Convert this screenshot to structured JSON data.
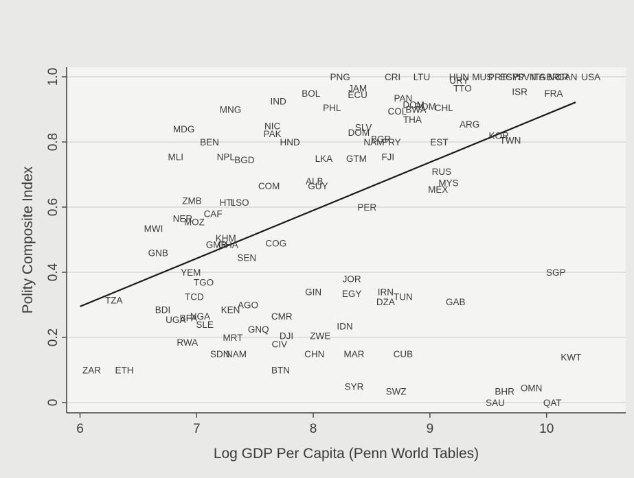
{
  "chart_data": {
    "type": "scatter",
    "title": "",
    "xlabel": "Log GDP Per Capita (Penn World Tables)",
    "ylabel": "Polity Composite Index",
    "xlim": [
      5.9,
      10.7
    ],
    "ylim": [
      -0.03,
      1.03
    ],
    "xticks": [
      6,
      7,
      8,
      9,
      10
    ],
    "yticks": [
      0,
      0.2,
      0.4,
      0.6,
      0.8,
      1.0
    ],
    "ytick_labels": [
      "0",
      "0.2",
      "0.4",
      "0.6",
      "0.8",
      "1.0"
    ],
    "grid": "horizontal",
    "fit_line": {
      "x": [
        6.0,
        10.25
      ],
      "y": [
        0.295,
        0.922
      ]
    },
    "points": [
      {
        "label": "PNG",
        "x": 8.23,
        "y": 1.0
      },
      {
        "label": "CRI",
        "x": 8.68,
        "y": 1.0
      },
      {
        "label": "LTU",
        "x": 8.93,
        "y": 1.0
      },
      {
        "label": "HUN",
        "x": 9.25,
        "y": 1.0
      },
      {
        "label": "MUS",
        "x": 9.45,
        "y": 1.0
      },
      {
        "label": "PRT",
        "x": 9.58,
        "y": 1.0
      },
      {
        "label": "ESP",
        "x": 9.68,
        "y": 1.0
      },
      {
        "label": "CYP",
        "x": 9.73,
        "y": 1.0
      },
      {
        "label": "SVN",
        "x": 9.83,
        "y": 1.0
      },
      {
        "label": "ITA",
        "x": 9.93,
        "y": 1.0
      },
      {
        "label": "GBR",
        "x": 10.02,
        "y": 1.0
      },
      {
        "label": "NOR",
        "x": 10.1,
        "y": 1.0
      },
      {
        "label": "CAN",
        "x": 10.18,
        "y": 1.0
      },
      {
        "label": "USA",
        "x": 10.38,
        "y": 1.0
      },
      {
        "label": "URY",
        "x": 9.25,
        "y": 0.99
      },
      {
        "label": "TTO",
        "x": 9.28,
        "y": 0.965
      },
      {
        "label": "ISR",
        "x": 9.77,
        "y": 0.955
      },
      {
        "label": "FRA",
        "x": 10.06,
        "y": 0.95
      },
      {
        "label": "JAM",
        "x": 8.38,
        "y": 0.965
      },
      {
        "label": "ECU",
        "x": 8.38,
        "y": 0.945
      },
      {
        "label": "BOL",
        "x": 7.98,
        "y": 0.95
      },
      {
        "label": "IND",
        "x": 7.7,
        "y": 0.925
      },
      {
        "label": "MNG",
        "x": 7.29,
        "y": 0.9
      },
      {
        "label": "PHL",
        "x": 8.16,
        "y": 0.905
      },
      {
        "label": "PAN",
        "x": 8.77,
        "y": 0.935
      },
      {
        "label": "DOM",
        "x": 8.86,
        "y": 0.915
      },
      {
        "label": "ROM",
        "x": 8.96,
        "y": 0.91
      },
      {
        "label": "COL",
        "x": 8.72,
        "y": 0.895
      },
      {
        "label": "BWA",
        "x": 8.88,
        "y": 0.9
      },
      {
        "label": "CHL",
        "x": 9.12,
        "y": 0.905
      },
      {
        "label": "THA",
        "x": 8.85,
        "y": 0.87
      },
      {
        "label": "ARG",
        "x": 9.34,
        "y": 0.855
      },
      {
        "label": "MDG",
        "x": 6.89,
        "y": 0.84
      },
      {
        "label": "NIC",
        "x": 7.65,
        "y": 0.85
      },
      {
        "label": "PAK",
        "x": 7.65,
        "y": 0.825
      },
      {
        "label": "HND",
        "x": 7.8,
        "y": 0.8
      },
      {
        "label": "BEN",
        "x": 7.11,
        "y": 0.8
      },
      {
        "label": "SLV",
        "x": 8.43,
        "y": 0.845
      },
      {
        "label": "DOM",
        "x": 8.39,
        "y": 0.83
      },
      {
        "label": "BGR",
        "x": 8.58,
        "y": 0.81
      },
      {
        "label": "NAM",
        "x": 8.52,
        "y": 0.8
      },
      {
        "label": "PRY",
        "x": 8.67,
        "y": 0.8
      },
      {
        "label": "EST",
        "x": 9.08,
        "y": 0.8
      },
      {
        "label": "KOR",
        "x": 9.59,
        "y": 0.82
      },
      {
        "label": "TWN",
        "x": 9.69,
        "y": 0.805
      },
      {
        "label": "MLI",
        "x": 6.82,
        "y": 0.755
      },
      {
        "label": "NPL",
        "x": 7.25,
        "y": 0.755
      },
      {
        "label": "BGD",
        "x": 7.41,
        "y": 0.745
      },
      {
        "label": "LKA",
        "x": 8.09,
        "y": 0.75
      },
      {
        "label": "GTM",
        "x": 8.37,
        "y": 0.75
      },
      {
        "label": "FJI",
        "x": 8.64,
        "y": 0.755
      },
      {
        "label": "RUS",
        "x": 9.1,
        "y": 0.71
      },
      {
        "label": "MYS",
        "x": 9.16,
        "y": 0.675
      },
      {
        "label": "MEX",
        "x": 9.07,
        "y": 0.655
      },
      {
        "label": "ALB",
        "x": 8.01,
        "y": 0.68
      },
      {
        "label": "GUY",
        "x": 8.04,
        "y": 0.665
      },
      {
        "label": "COM",
        "x": 7.62,
        "y": 0.665
      },
      {
        "label": "ZMB",
        "x": 6.96,
        "y": 0.62
      },
      {
        "label": "HTI",
        "x": 7.26,
        "y": 0.615
      },
      {
        "label": "LSO",
        "x": 7.37,
        "y": 0.615
      },
      {
        "label": "CAF",
        "x": 7.14,
        "y": 0.58
      },
      {
        "label": "NER",
        "x": 6.88,
        "y": 0.565
      },
      {
        "label": "MOZ",
        "x": 6.98,
        "y": 0.555
      },
      {
        "label": "PER",
        "x": 8.46,
        "y": 0.6
      },
      {
        "label": "MWI",
        "x": 6.63,
        "y": 0.535
      },
      {
        "label": "KHM",
        "x": 7.25,
        "y": 0.505
      },
      {
        "label": "GMB",
        "x": 7.17,
        "y": 0.485
      },
      {
        "label": "GHA",
        "x": 7.27,
        "y": 0.485
      },
      {
        "label": "COG",
        "x": 7.68,
        "y": 0.49
      },
      {
        "label": "GNB",
        "x": 6.67,
        "y": 0.46
      },
      {
        "label": "SEN",
        "x": 7.43,
        "y": 0.445
      },
      {
        "label": "YEM",
        "x": 6.95,
        "y": 0.4
      },
      {
        "label": "TGO",
        "x": 7.06,
        "y": 0.37
      },
      {
        "label": "TCD",
        "x": 6.98,
        "y": 0.325
      },
      {
        "label": "TZA",
        "x": 6.29,
        "y": 0.315
      },
      {
        "label": "BDI",
        "x": 6.71,
        "y": 0.285
      },
      {
        "label": "KEN",
        "x": 7.29,
        "y": 0.285
      },
      {
        "label": "AGO",
        "x": 7.44,
        "y": 0.3
      },
      {
        "label": "UGA",
        "x": 6.82,
        "y": 0.255
      },
      {
        "label": "BFA",
        "x": 6.93,
        "y": 0.26
      },
      {
        "label": "NGA",
        "x": 7.03,
        "y": 0.265
      },
      {
        "label": "SLE",
        "x": 7.07,
        "y": 0.24
      },
      {
        "label": "CMR",
        "x": 7.73,
        "y": 0.265
      },
      {
        "label": "GIN",
        "x": 8.0,
        "y": 0.34
      },
      {
        "label": "JOR",
        "x": 8.33,
        "y": 0.38
      },
      {
        "label": "EGY",
        "x": 8.33,
        "y": 0.335
      },
      {
        "label": "IRN",
        "x": 8.62,
        "y": 0.34
      },
      {
        "label": "TUN",
        "x": 8.77,
        "y": 0.325
      },
      {
        "label": "DZA",
        "x": 8.62,
        "y": 0.31
      },
      {
        "label": "GAB",
        "x": 9.22,
        "y": 0.31
      },
      {
        "label": "SGP",
        "x": 10.08,
        "y": 0.4
      },
      {
        "label": "IDN",
        "x": 8.27,
        "y": 0.235
      },
      {
        "label": "GNQ",
        "x": 7.53,
        "y": 0.225
      },
      {
        "label": "MRT",
        "x": 7.31,
        "y": 0.2
      },
      {
        "label": "DJI",
        "x": 7.77,
        "y": 0.205
      },
      {
        "label": "ZWE",
        "x": 8.06,
        "y": 0.205
      },
      {
        "label": "CIV",
        "x": 7.71,
        "y": 0.18
      },
      {
        "label": "RWA",
        "x": 6.92,
        "y": 0.185
      },
      {
        "label": "SDN",
        "x": 7.2,
        "y": 0.15
      },
      {
        "label": "NAM",
        "x": 7.34,
        "y": 0.15
      },
      {
        "label": "CHN",
        "x": 8.01,
        "y": 0.15
      },
      {
        "label": "MAR",
        "x": 8.35,
        "y": 0.15
      },
      {
        "label": "CUB",
        "x": 8.77,
        "y": 0.15
      },
      {
        "label": "KWT",
        "x": 10.21,
        "y": 0.14
      },
      {
        "label": "ZAR",
        "x": 6.1,
        "y": 0.1
      },
      {
        "label": "ETH",
        "x": 6.38,
        "y": 0.1
      },
      {
        "label": "BTN",
        "x": 7.72,
        "y": 0.1
      },
      {
        "label": "SYR",
        "x": 8.35,
        "y": 0.05
      },
      {
        "label": "SWZ",
        "x": 8.71,
        "y": 0.035
      },
      {
        "label": "OMN",
        "x": 9.87,
        "y": 0.045
      },
      {
        "label": "BHR",
        "x": 9.64,
        "y": 0.035
      },
      {
        "label": "SAU",
        "x": 9.56,
        "y": 0.0
      },
      {
        "label": "QAT",
        "x": 10.05,
        "y": 0.0
      }
    ]
  }
}
